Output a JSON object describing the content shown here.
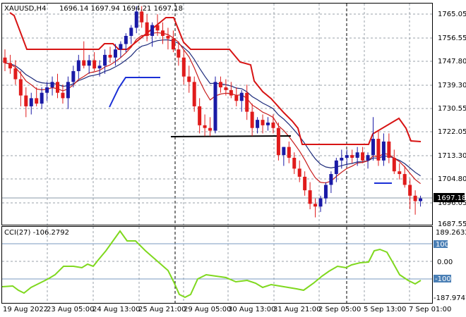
{
  "header": {
    "symbol_tf": "XAUUSD,H4",
    "ohlc": "1696.14 1697.94 1694.21 1697.18"
  },
  "indicator": {
    "label": "CCI(27) -106.2792"
  },
  "price_scale": {
    "ticks": [
      "1765.05",
      "1756.55",
      "1747.80",
      "1739.30",
      "1730.55",
      "1722.05",
      "1713.30",
      "1704.80",
      "1696.05",
      "1687.55"
    ],
    "current_price": "1697.18",
    "current_price_color": "#000000"
  },
  "cci_scale": {
    "top": "189.2632",
    "levels": [
      "100",
      "0.00",
      "-100"
    ],
    "bottom": "-187.9747",
    "level_box_color": "#4a7fb5"
  },
  "time_scale": {
    "labels": [
      "19 Aug 2022",
      "23 Aug 05:00",
      "24 Aug 13:00",
      "25 Aug 21:00",
      "29 Aug 05:00",
      "30 Aug 13:00",
      "31 Aug 21:00",
      "2 Sep 05:00",
      "5 Sep 13:00",
      "7 Sep 01:00"
    ]
  },
  "colors": {
    "bull": "#1a1aa6",
    "bear": "#e01b1b",
    "stop_line": "#d71414",
    "slow_ma": "#1c2a7a",
    "fast_ma": "#c81c1c",
    "cci_line": "#7fd81e",
    "grid": "#9aa0a8",
    "stop_line_blue": "#1a2fd6"
  },
  "chart_data": {
    "type": "candlestick",
    "price_range": [
      1687.55,
      1768.5
    ],
    "candles": [
      [
        1749,
        1752,
        1744,
        1747
      ],
      [
        1747,
        1750,
        1743,
        1745
      ],
      [
        1745,
        1748,
        1739,
        1741
      ],
      [
        1741,
        1744,
        1731,
        1735
      ],
      [
        1735,
        1738,
        1727,
        1731
      ],
      [
        1731,
        1736,
        1728,
        1734
      ],
      [
        1734,
        1738,
        1731,
        1732
      ],
      [
        1732,
        1738,
        1730,
        1736
      ],
      [
        1736,
        1740,
        1733,
        1738
      ],
      [
        1738,
        1742,
        1735,
        1740
      ],
      [
        1740,
        1743,
        1734,
        1736
      ],
      [
        1736,
        1739,
        1732,
        1734
      ],
      [
        1734,
        1742,
        1730,
        1740
      ],
      [
        1740,
        1746,
        1738,
        1744
      ],
      [
        1744,
        1750,
        1741,
        1748
      ],
      [
        1748,
        1755,
        1745,
        1746
      ],
      [
        1746,
        1750,
        1743,
        1748
      ],
      [
        1748,
        1751,
        1744,
        1745
      ],
      [
        1745,
        1748,
        1742,
        1746
      ],
      [
        1746,
        1752,
        1743,
        1750
      ],
      [
        1750,
        1753,
        1747,
        1749
      ],
      [
        1749,
        1754,
        1746,
        1752
      ],
      [
        1752,
        1755,
        1749,
        1754
      ],
      [
        1754,
        1758,
        1751,
        1757
      ],
      [
        1757,
        1761,
        1754,
        1760
      ],
      [
        1760,
        1768,
        1758,
        1766
      ],
      [
        1766,
        1768,
        1760,
        1762
      ],
      [
        1762,
        1765,
        1755,
        1757
      ],
      [
        1757,
        1762,
        1753,
        1761
      ],
      [
        1761,
        1765,
        1757,
        1759
      ],
      [
        1759,
        1762,
        1754,
        1757
      ],
      [
        1757,
        1760,
        1752,
        1756
      ],
      [
        1756,
        1759,
        1751,
        1752
      ],
      [
        1752,
        1755,
        1746,
        1749
      ],
      [
        1749,
        1752,
        1739,
        1742
      ],
      [
        1742,
        1746,
        1736,
        1740
      ],
      [
        1740,
        1742,
        1729,
        1731
      ],
      [
        1731,
        1734,
        1721,
        1724
      ],
      [
        1724,
        1728,
        1720,
        1723
      ],
      [
        1723,
        1727,
        1720,
        1722
      ],
      [
        1722,
        1742,
        1721,
        1740
      ],
      [
        1740,
        1742,
        1736,
        1738
      ],
      [
        1738,
        1741,
        1735,
        1737
      ],
      [
        1737,
        1740,
        1734,
        1735
      ],
      [
        1735,
        1738,
        1731,
        1733
      ],
      [
        1733,
        1737,
        1729,
        1736
      ],
      [
        1736,
        1739,
        1726,
        1729
      ],
      [
        1729,
        1732,
        1720,
        1723
      ],
      [
        1723,
        1727,
        1721,
        1726
      ],
      [
        1726,
        1728,
        1721,
        1724
      ],
      [
        1724,
        1727,
        1722,
        1725
      ],
      [
        1725,
        1728,
        1721,
        1723
      ],
      [
        1723,
        1725,
        1711,
        1713
      ],
      [
        1713,
        1716,
        1709,
        1716
      ],
      [
        1716,
        1718,
        1710,
        1712
      ],
      [
        1712,
        1714,
        1706,
        1708
      ],
      [
        1708,
        1711,
        1703,
        1705
      ],
      [
        1705,
        1707,
        1698,
        1700
      ],
      [
        1700,
        1703,
        1693,
        1695
      ],
      [
        1695,
        1697,
        1690,
        1694
      ],
      [
        1694,
        1698,
        1692,
        1697
      ],
      [
        1697,
        1703,
        1695,
        1702
      ],
      [
        1702,
        1707,
        1699,
        1706
      ],
      [
        1706,
        1712,
        1703,
        1711
      ],
      [
        1711,
        1715,
        1708,
        1712
      ],
      [
        1712,
        1715,
        1709,
        1713
      ],
      [
        1713,
        1715,
        1710,
        1712
      ],
      [
        1712,
        1716,
        1709,
        1714
      ],
      [
        1714,
        1716,
        1710,
        1711
      ],
      [
        1711,
        1714,
        1708,
        1713
      ],
      [
        1713,
        1727,
        1711,
        1719
      ],
      [
        1719,
        1722,
        1709,
        1711
      ],
      [
        1711,
        1721,
        1709,
        1718
      ],
      [
        1718,
        1721,
        1710,
        1712
      ],
      [
        1712,
        1715,
        1706,
        1707
      ],
      [
        1707,
        1710,
        1704,
        1706
      ],
      [
        1706,
        1709,
        1701,
        1702
      ],
      [
        1702,
        1704,
        1693,
        1698
      ],
      [
        1698,
        1700,
        1691,
        1696
      ],
      [
        1696,
        1698,
        1694,
        1697
      ]
    ]
  }
}
